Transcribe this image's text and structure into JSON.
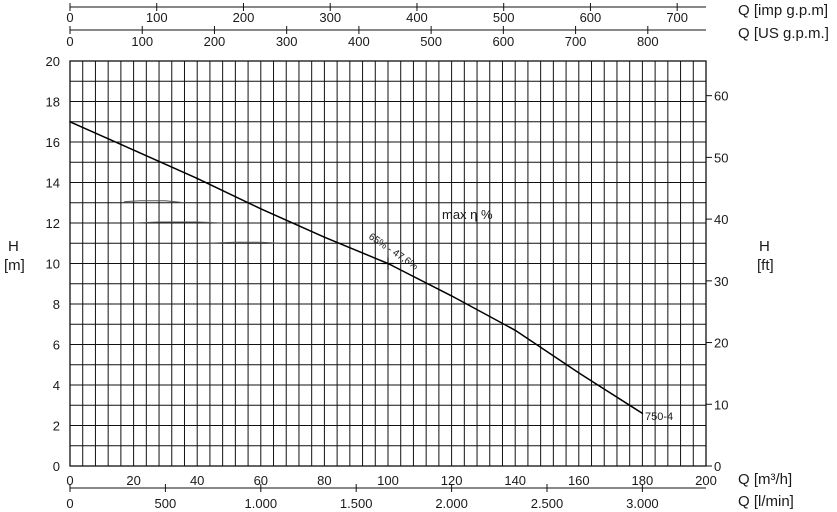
{
  "chart_data": {
    "type": "line",
    "title": "",
    "x": [
      0,
      20,
      40,
      60,
      80,
      100,
      120,
      140,
      160,
      180
    ],
    "series": [
      {
        "name": "750-4",
        "values": [
          17.0,
          15.6,
          14.2,
          12.7,
          11.3,
          10.0,
          8.4,
          6.7,
          4.6,
          2.6
        ]
      }
    ],
    "xlim": [
      0,
      200
    ],
    "ylim": [
      0,
      20
    ],
    "grid": true,
    "axes": {
      "bottom_primary": {
        "label": "Q [m³/h]",
        "range": [
          0,
          200
        ],
        "ticks": [
          0,
          20,
          40,
          60,
          80,
          100,
          120,
          140,
          160,
          180,
          200
        ]
      },
      "bottom_secondary": {
        "label": "Q [l/min]",
        "ticks": [
          0,
          500,
          1000,
          1500,
          2000,
          2500,
          3000
        ],
        "tick_labels": [
          "0",
          "500",
          "1.000",
          "1.500",
          "2.000",
          "2.500",
          "3.000"
        ]
      },
      "top_outer": {
        "label": "Q [imp g.p.m]",
        "ticks": [
          0,
          100,
          200,
          300,
          400,
          500,
          600,
          700
        ],
        "tick_labels": [
          "0",
          "100",
          "200",
          "300",
          "400",
          "500",
          "600",
          "700"
        ]
      },
      "top_inner": {
        "label": "Q [US g.p.m.]",
        "ticks": [
          0,
          100,
          200,
          300,
          400,
          500,
          600,
          700,
          800
        ],
        "tick_labels": [
          "0",
          "100",
          "200",
          "300",
          "400",
          "500",
          "600",
          "700",
          "800"
        ]
      },
      "left": {
        "label_line1": "H",
        "label_line2": "[m]",
        "range": [
          0,
          20
        ],
        "ticks": [
          0,
          2,
          4,
          6,
          8,
          10,
          12,
          14,
          16,
          18,
          20
        ]
      },
      "right": {
        "label_line1": "H",
        "label_line2": "[ft]",
        "ticks": [
          0,
          10,
          20,
          30,
          40,
          50,
          60
        ],
        "tick_labels": [
          "0",
          "10",
          "20",
          "30",
          "40",
          "50",
          "60"
        ]
      }
    },
    "annotations": {
      "efficiency_label": "max η %",
      "operating_point_label": "65% - 47,6%",
      "operating_point": {
        "x": 100,
        "y": 10
      },
      "curve_label": "750-4"
    },
    "faint_curves": [
      {
        "x": [
          17,
          22,
          30,
          36
        ],
        "y": [
          13.05,
          13.1,
          13.1,
          13.0
        ]
      },
      {
        "x": [
          20,
          28,
          40,
          48
        ],
        "y": [
          12.0,
          12.05,
          12.05,
          12.0
        ]
      },
      {
        "x": [
          43,
          52,
          60,
          66
        ],
        "y": [
          11.0,
          11.05,
          11.05,
          11.0
        ]
      }
    ]
  }
}
